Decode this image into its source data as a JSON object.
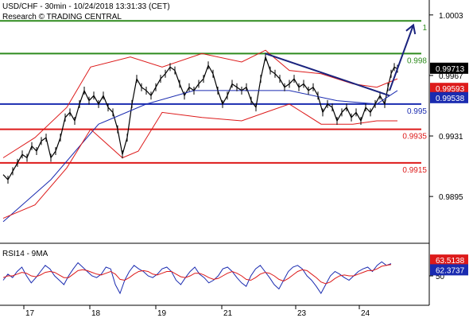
{
  "chart_data": {
    "type": "line",
    "header": {
      "line1": "USD/CHF - 30min - 10/24/2018 13:31:33 (CET)",
      "line2": "Research © TRADING CENTRAL"
    },
    "price_axis": {
      "range": [
        0.987,
        1.001
      ],
      "ticks": [
        "1.0003",
        "0.9967",
        "0.9931",
        "0.9895"
      ],
      "tick_values": [
        1.0003,
        0.9967,
        0.9931,
        0.9895
      ]
    },
    "levels": [
      {
        "label": "1",
        "value": 0.99995,
        "color": "#2e8b1e"
      },
      {
        "label": "0.998",
        "value": 0.998,
        "color": "#2e8b1e"
      },
      {
        "label": "0.995",
        "value": 0.995,
        "color": "#1a2bb0"
      },
      {
        "label": "0.9935",
        "value": 0.9935,
        "color": "#dd1a1a"
      },
      {
        "label": "0.9915",
        "value": 0.9915,
        "color": "#dd1a1a"
      }
    ],
    "badges": [
      {
        "label": "0.99713",
        "value": 0.99713,
        "color": "#000000"
      },
      {
        "label": "0.99593",
        "value": 0.99593,
        "color": "#dd1a1a"
      },
      {
        "label": "0.99538",
        "value": 0.99538,
        "color": "#1a2bb0"
      }
    ],
    "series": [
      {
        "name": "USD/CHF",
        "points": [
          [
            0,
            0.9908
          ],
          [
            6,
            0.9905
          ],
          [
            12,
            0.991
          ],
          [
            18,
            0.9915
          ],
          [
            24,
            0.992
          ],
          [
            30,
            0.9918
          ],
          [
            36,
            0.9925
          ],
          [
            42,
            0.9922
          ],
          [
            48,
            0.9928
          ],
          [
            54,
            0.993
          ],
          [
            60,
            0.9918
          ],
          [
            66,
            0.9922
          ],
          [
            72,
            0.993
          ],
          [
            78,
            0.9942
          ],
          [
            84,
            0.9945
          ],
          [
            90,
            0.994
          ],
          [
            96,
            0.995
          ],
          [
            102,
            0.9958
          ],
          [
            108,
            0.9952
          ],
          [
            114,
            0.9955
          ],
          [
            120,
            0.995
          ],
          [
            126,
            0.9955
          ],
          [
            132,
            0.9948
          ],
          [
            138,
            0.9945
          ],
          [
            144,
            0.9935
          ],
          [
            150,
            0.992
          ],
          [
            156,
            0.993
          ],
          [
            162,
            0.995
          ],
          [
            168,
            0.9965
          ],
          [
            174,
            0.996
          ],
          [
            180,
            0.9958
          ],
          [
            186,
            0.9955
          ],
          [
            192,
            0.996
          ],
          [
            198,
            0.9965
          ],
          [
            204,
            0.9968
          ],
          [
            210,
            0.9972
          ],
          [
            216,
            0.997
          ],
          [
            222,
            0.9962
          ],
          [
            228,
            0.9955
          ],
          [
            234,
            0.996
          ],
          [
            240,
            0.9958
          ],
          [
            246,
            0.9962
          ],
          [
            252,
            0.9965
          ],
          [
            258,
            0.9973
          ],
          [
            264,
            0.9968
          ],
          [
            270,
            0.9958
          ],
          [
            276,
            0.995
          ],
          [
            282,
            0.9955
          ],
          [
            288,
            0.9962
          ],
          [
            294,
            0.996
          ],
          [
            300,
            0.9958
          ],
          [
            306,
            0.996
          ],
          [
            312,
            0.9952
          ],
          [
            318,
            0.9948
          ],
          [
            324,
            0.9965
          ],
          [
            330,
            0.9978
          ],
          [
            336,
            0.997
          ],
          [
            342,
            0.9968
          ],
          [
            348,
            0.9965
          ],
          [
            354,
            0.996
          ],
          [
            360,
            0.9962
          ],
          [
            366,
            0.9965
          ],
          [
            372,
            0.996
          ],
          [
            378,
            0.9962
          ],
          [
            384,
            0.9958
          ],
          [
            390,
            0.996
          ],
          [
            396,
            0.9955
          ],
          [
            402,
            0.9945
          ],
          [
            408,
            0.995
          ],
          [
            414,
            0.9948
          ],
          [
            420,
            0.994
          ],
          [
            426,
            0.9945
          ],
          [
            432,
            0.9948
          ],
          [
            438,
            0.9942
          ],
          [
            444,
            0.9945
          ],
          [
            450,
            0.994
          ],
          [
            456,
            0.9948
          ],
          [
            462,
            0.9945
          ],
          [
            468,
            0.995
          ],
          [
            474,
            0.9955
          ],
          [
            480,
            0.995
          ],
          [
            484,
            0.996
          ],
          [
            488,
            0.9968
          ],
          [
            492,
            0.9972
          ],
          [
            496,
            0.9971
          ]
        ],
        "color": "#000000"
      },
      {
        "name": "moving average",
        "points": [
          [
            0,
            0.988
          ],
          [
            60,
            0.9905
          ],
          [
            120,
            0.9938
          ],
          [
            180,
            0.995
          ],
          [
            240,
            0.9958
          ],
          [
            300,
            0.9958
          ],
          [
            360,
            0.9958
          ],
          [
            420,
            0.9952
          ],
          [
            470,
            0.995
          ],
          [
            496,
            0.9958
          ]
        ],
        "color": "#1a2bb0"
      },
      {
        "name": "upper band",
        "points": [
          [
            0,
            0.9918
          ],
          [
            40,
            0.993
          ],
          [
            80,
            0.9948
          ],
          [
            110,
            0.9972
          ],
          [
            160,
            0.9978
          ],
          [
            200,
            0.9972
          ],
          [
            250,
            0.998
          ],
          [
            300,
            0.9975
          ],
          [
            330,
            0.9982
          ],
          [
            360,
            0.997
          ],
          [
            400,
            0.9968
          ],
          [
            440,
            0.9962
          ],
          [
            470,
            0.996
          ],
          [
            496,
            0.9965
          ]
        ],
        "color": "#dd1a1a"
      },
      {
        "name": "lower band",
        "points": [
          [
            0,
            0.9882
          ],
          [
            40,
            0.989
          ],
          [
            80,
            0.9912
          ],
          [
            110,
            0.9935
          ],
          [
            150,
            0.9918
          ],
          [
            170,
            0.9922
          ],
          [
            200,
            0.9945
          ],
          [
            250,
            0.9942
          ],
          [
            300,
            0.994
          ],
          [
            330,
            0.9945
          ],
          [
            360,
            0.995
          ],
          [
            400,
            0.9938
          ],
          [
            440,
            0.9938
          ],
          [
            470,
            0.994
          ],
          [
            496,
            0.994
          ]
        ],
        "color": "#dd1a1a"
      }
    ],
    "trendline": {
      "points": [
        [
          330,
          0.998
        ],
        [
          486,
          0.9955
        ]
      ],
      "color": "#1a237e"
    },
    "arrow": {
      "points": [
        [
          486,
          0.9958
        ],
        [
          516,
          0.9997
        ]
      ],
      "color": "#1a237e"
    },
    "rsi": {
      "label": "RSI14 - 9MA",
      "range": [
        20,
        80
      ],
      "ticks": [
        "50"
      ],
      "tick_values": [
        50
      ],
      "badges": [
        {
          "label": "63.5138",
          "value": 63.5138,
          "color": "#dd1a1a"
        },
        {
          "label": "62.3737",
          "value": 62.3737,
          "color": "#1a2bb0"
        }
      ],
      "series": [
        {
          "name": "RSI14",
          "color": "#1a2bb0",
          "values": [
            45,
            52,
            48,
            55,
            60,
            50,
            42,
            48,
            55,
            62,
            58,
            50,
            45,
            40,
            50,
            58,
            65,
            60,
            55,
            50,
            48,
            52,
            60,
            58,
            40,
            30,
            45,
            55,
            62,
            58,
            55,
            50,
            48,
            52,
            58,
            60,
            55,
            45,
            40,
            48,
            55,
            60,
            52,
            48,
            42,
            45,
            50,
            58,
            60,
            55,
            48,
            42,
            38,
            50,
            58,
            62,
            55,
            48,
            40,
            35,
            45,
            55,
            60,
            62,
            58,
            50,
            45,
            38,
            30,
            40,
            50,
            55,
            52,
            48,
            45,
            50,
            55,
            58,
            60,
            55,
            62,
            66,
            62,
            64
          ]
        },
        {
          "name": "9MA",
          "color": "#dd1a1a",
          "values": [
            48,
            50,
            50,
            52,
            54,
            53,
            50,
            49,
            51,
            54,
            55,
            54,
            51,
            48,
            48,
            52,
            56,
            57,
            56,
            54,
            52,
            51,
            53,
            55,
            52,
            46,
            45,
            48,
            52,
            55,
            56,
            55,
            52,
            51,
            53,
            55,
            55,
            52,
            49,
            48,
            50,
            53,
            53,
            51,
            48,
            46,
            47,
            50,
            53,
            55,
            53,
            50,
            46,
            45,
            48,
            52,
            54,
            53,
            50,
            46,
            44,
            47,
            51,
            55,
            57,
            56,
            52,
            48,
            43,
            41,
            43,
            47,
            50,
            51,
            50,
            50,
            52,
            54,
            56,
            56,
            58,
            61,
            62,
            63
          ]
        }
      ]
    },
    "x_axis": {
      "ticks": [
        "17",
        "18",
        "19",
        "21",
        "23",
        "24"
      ],
      "tick_positions": [
        30,
        113,
        196,
        279,
        372,
        452
      ]
    }
  }
}
